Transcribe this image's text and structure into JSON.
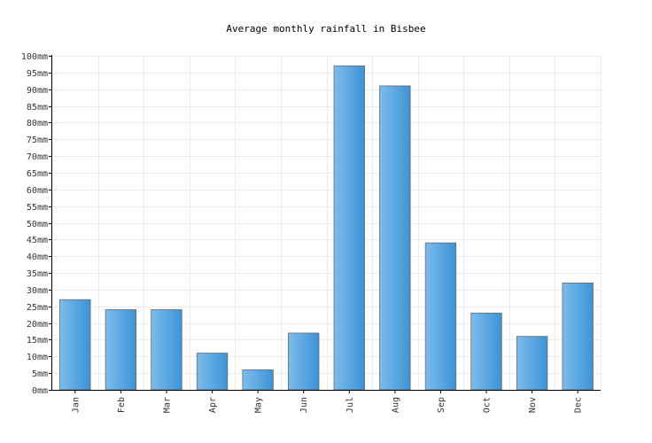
{
  "chart_data": {
    "type": "bar",
    "title": "Average monthly rainfall in Bisbee",
    "categories": [
      "Jan",
      "Feb",
      "Mar",
      "Apr",
      "May",
      "Jun",
      "Jul",
      "Aug",
      "Sep",
      "Oct",
      "Nov",
      "Dec"
    ],
    "values": [
      27,
      24,
      24,
      11,
      6,
      17,
      97,
      91,
      44,
      23,
      16,
      32
    ],
    "y_ticks": [
      "0mm",
      "5mm",
      "10mm",
      "15mm",
      "20mm",
      "25mm",
      "30mm",
      "35mm",
      "40mm",
      "45mm",
      "50mm",
      "55mm",
      "60mm",
      "65mm",
      "70mm",
      "75mm",
      "80mm",
      "85mm",
      "90mm",
      "95mm",
      "100mm"
    ],
    "ylim": [
      0,
      100
    ],
    "ystep": 5,
    "grid": true,
    "bar_color": "#4a9fe0"
  }
}
